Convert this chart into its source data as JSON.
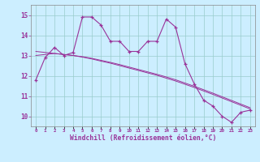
{
  "xlabel": "Windchill (Refroidissement éolien,°C)",
  "background_color": "#cceeff",
  "line_color": "#993399",
  "grid_color": "#99cccc",
  "x_values": [
    0,
    1,
    2,
    3,
    4,
    5,
    6,
    7,
    8,
    9,
    10,
    11,
    12,
    13,
    14,
    15,
    16,
    17,
    18,
    19,
    20,
    21,
    22,
    23
  ],
  "y_main": [
    11.8,
    12.9,
    13.4,
    13.0,
    13.15,
    14.9,
    14.9,
    14.5,
    13.7,
    13.7,
    13.2,
    13.2,
    13.7,
    13.7,
    14.8,
    14.4,
    12.6,
    11.6,
    10.8,
    10.5,
    10.0,
    9.7,
    10.2,
    10.3
  ],
  "y_trend1": [
    13.2,
    13.15,
    13.1,
    13.05,
    13.0,
    12.92,
    12.83,
    12.72,
    12.62,
    12.5,
    12.38,
    12.26,
    12.14,
    12.02,
    11.88,
    11.74,
    11.58,
    11.42,
    11.25,
    11.08,
    10.9,
    10.72,
    10.54,
    10.36
  ],
  "y_trend2": [
    13.0,
    13.05,
    13.1,
    13.05,
    13.0,
    12.94,
    12.86,
    12.76,
    12.66,
    12.55,
    12.43,
    12.31,
    12.19,
    12.07,
    11.94,
    11.8,
    11.64,
    11.48,
    11.31,
    11.14,
    10.96,
    10.78,
    10.6,
    10.42
  ],
  "ylim": [
    9.5,
    15.5
  ],
  "yticks": [
    10,
    11,
    12,
    13,
    14,
    15
  ],
  "xlim": [
    -0.5,
    23.5
  ]
}
